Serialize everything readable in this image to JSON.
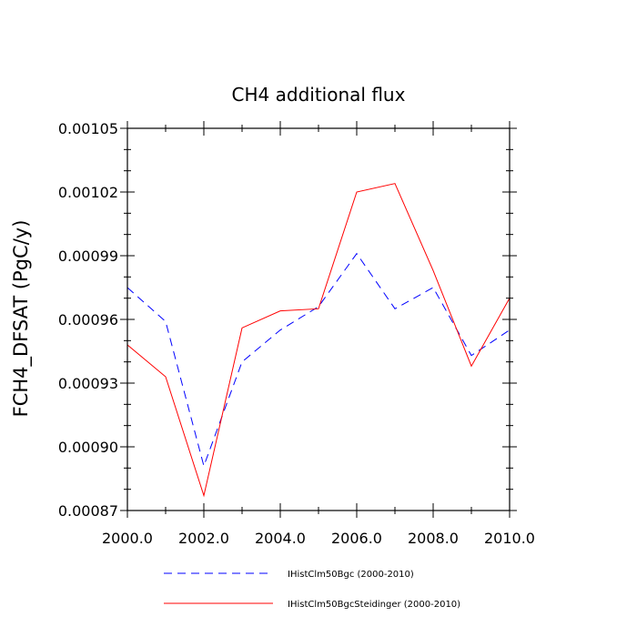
{
  "chart_data": {
    "type": "line",
    "title": "CH4 additional flux",
    "xlabel": "",
    "ylabel": "FCH4_DFSAT  (PgC/y)",
    "xlim": [
      2000,
      2010
    ],
    "ylim": [
      0.00087,
      0.00105
    ],
    "x_ticks": [
      2000,
      2002,
      2004,
      2006,
      2008,
      2010
    ],
    "x_tick_labels": [
      "2000.0",
      "2002.0",
      "2004.0",
      "2006.0",
      "2008.0",
      "2010.0"
    ],
    "y_ticks": [
      0.00087,
      0.0009,
      0.00093,
      0.00096,
      0.00099,
      0.00102,
      0.00105
    ],
    "y_tick_labels": [
      "0.00087",
      "0.00090",
      "0.00093",
      "0.00096",
      "0.00099",
      "0.00102",
      "0.00105"
    ],
    "grid": false,
    "legend_position": "bottom",
    "x": [
      2000,
      2001,
      2002,
      2003,
      2004,
      2005,
      2006,
      2007,
      2008,
      2009,
      2010
    ],
    "series": [
      {
        "name": "IHistClm50Bgc (2000-2010)",
        "color": "#0000ff",
        "dash": "dashed",
        "values": [
          0.000975,
          0.000959,
          0.000891,
          0.00094,
          0.000955,
          0.000966,
          0.000991,
          0.000965,
          0.000975,
          0.000943,
          0.000955
        ]
      },
      {
        "name": "IHistClm50BgcSteidinger (2000-2010)",
        "color": "#ff0000",
        "dash": "solid",
        "values": [
          0.000948,
          0.000933,
          0.000877,
          0.000956,
          0.000964,
          0.000965,
          0.00102,
          0.001024,
          0.000983,
          0.000938,
          0.00097
        ]
      }
    ]
  }
}
